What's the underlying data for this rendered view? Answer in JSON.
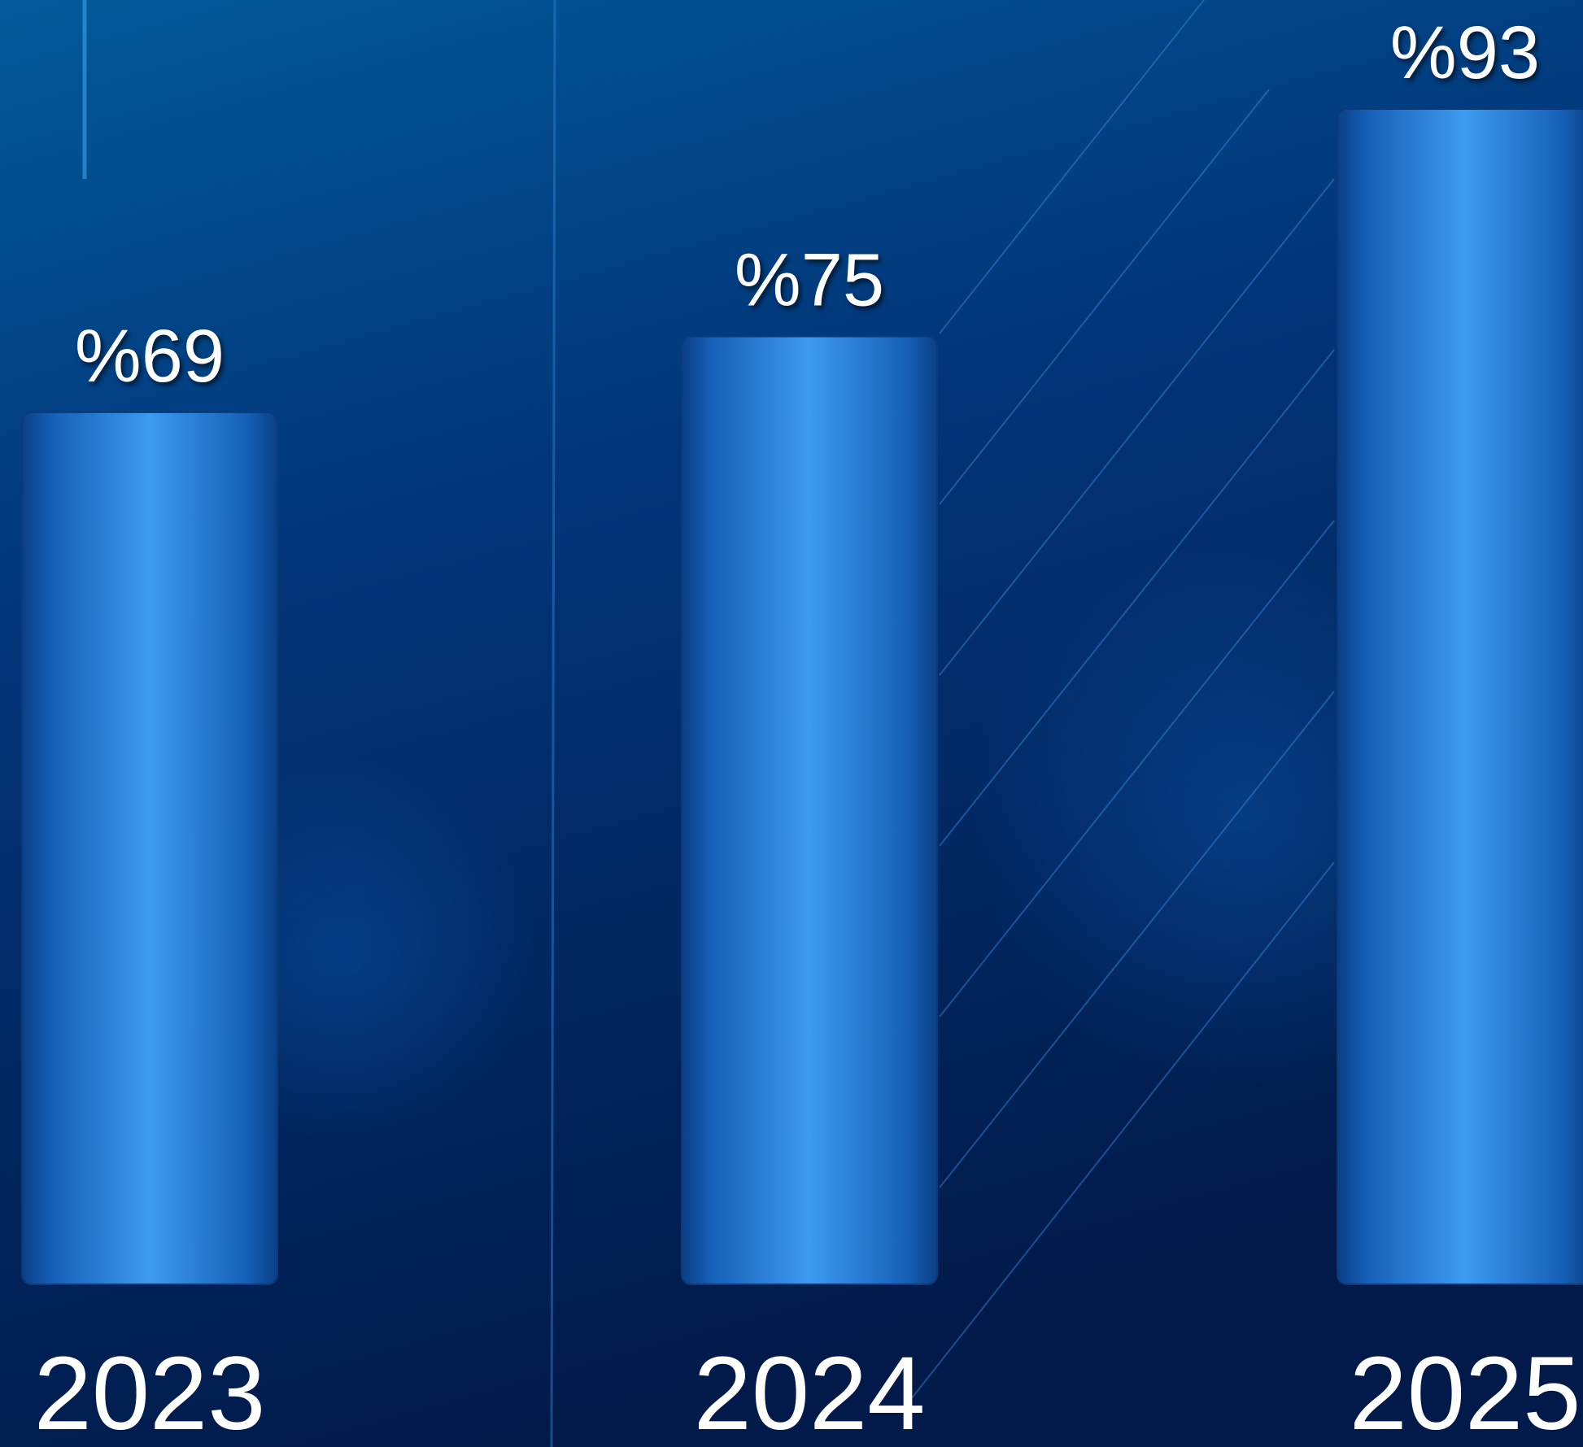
{
  "chart_data": {
    "type": "bar",
    "categories": [
      "2023",
      "2024",
      "2025"
    ],
    "values": [
      69,
      75,
      93
    ],
    "value_labels": [
      "%69",
      "%75",
      "%93"
    ],
    "color": "#3d9bf0"
  }
}
